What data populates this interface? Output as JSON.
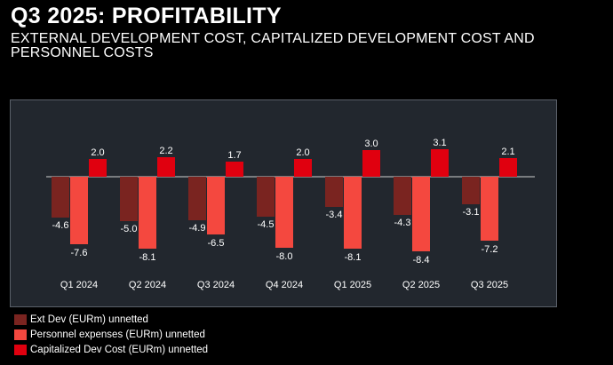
{
  "header": {
    "title": "Q3 2025: PROFITABILITY",
    "subtitle": "EXTERNAL DEVELOPMENT COST, CAPITALIZED DEVELOPMENT COST AND PERSONNEL COSTS"
  },
  "chart_data": {
    "type": "bar",
    "categories": [
      "Q1 2024",
      "Q2 2024",
      "Q3 2024",
      "Q4 2024",
      "Q1 2025",
      "Q2 2025",
      "Q3 2025"
    ],
    "series": [
      {
        "name": "Ext Dev (EURm) unnetted",
        "color": "#7a2420",
        "values": [
          -4.6,
          -5.0,
          -4.9,
          -4.5,
          -3.4,
          -4.3,
          -3.1
        ],
        "labels": [
          "-4.6",
          "-5.0",
          "-4.9",
          "-4.5",
          "-3.4",
          "-4.3",
          "-3.1"
        ]
      },
      {
        "name": "Personnel expenses (EURm) unnetted",
        "color": "#f4483f",
        "values": [
          -7.6,
          -8.1,
          -6.5,
          -8.0,
          -8.1,
          -8.4,
          -7.2
        ],
        "labels": [
          "-7.6",
          "-8.1",
          "-6.5",
          "-8.0",
          "-8.1",
          "-8.4",
          "-7.2"
        ]
      },
      {
        "name": "Capitalized Dev Cost (EURm) unnetted",
        "color": "#e0000f",
        "values": [
          2.0,
          2.2,
          1.7,
          2.0,
          3.0,
          3.1,
          2.1
        ],
        "labels": [
          "2.0",
          "2.2",
          "1.7",
          "2.0",
          "3.0",
          "3.1",
          "2.1"
        ]
      }
    ],
    "ylim": [
      -10,
      4
    ],
    "grid": false,
    "legend_position": "bottom-left"
  }
}
